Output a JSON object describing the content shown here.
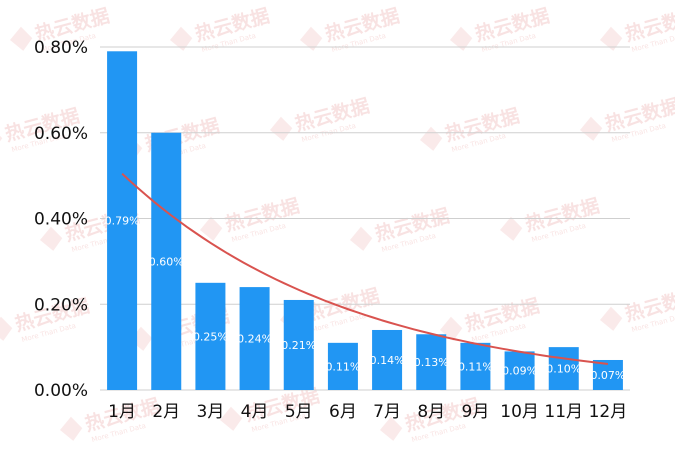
{
  "chart_data": {
    "type": "bar",
    "categories": [
      "1月",
      "2月",
      "3月",
      "4月",
      "5月",
      "6月",
      "7月",
      "8月",
      "9月",
      "10月",
      "11月",
      "12月"
    ],
    "values": [
      0.79,
      0.6,
      0.25,
      0.24,
      0.21,
      0.11,
      0.14,
      0.13,
      0.11,
      0.09,
      0.1,
      0.07
    ],
    "data_labels": [
      "0.79%",
      "0.60%",
      "0.25%",
      "0.24%",
      "0.21%",
      "0.11%",
      "0.14%",
      "0.13%",
      "0.11%",
      "0.09%",
      "0.10%",
      "0.07%"
    ],
    "yticks": [
      "0.00%",
      "0.20%",
      "0.40%",
      "0.60%",
      "0.80%"
    ],
    "ytick_values": [
      0,
      0.2,
      0.4,
      0.6,
      0.8
    ],
    "ylim": [
      0,
      0.8
    ],
    "grid": true,
    "trendline": {
      "type": "exponential",
      "color": "#d9534f"
    },
    "bar_color": "#2196f3"
  },
  "watermark": {
    "text": "热云数据",
    "sub": "More Than Data"
  },
  "source": {
    "text": "More—Than—Data"
  }
}
